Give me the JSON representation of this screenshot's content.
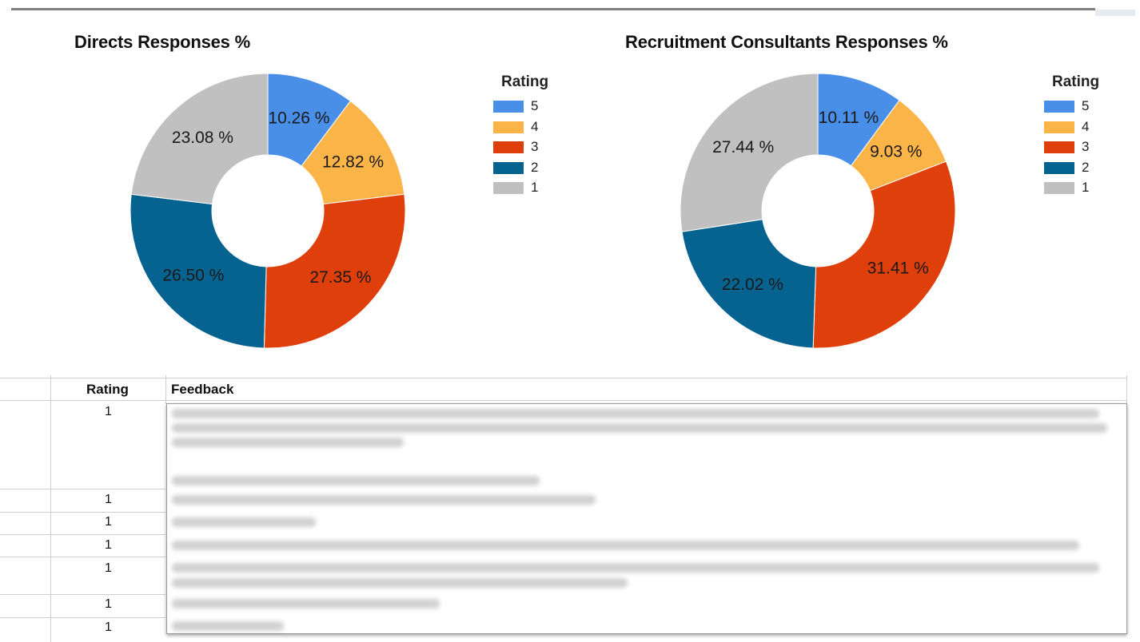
{
  "chart_data": [
    {
      "type": "pie",
      "title": "Directs Responses %",
      "legend_title": "Rating",
      "legend_position": "right",
      "slices": [
        {
          "label": "5",
          "value": 10.26,
          "display": "10.26 %",
          "color": "#4a8fe7"
        },
        {
          "label": "4",
          "value": 12.82,
          "display": "12.82 %",
          "color": "#fbb447"
        },
        {
          "label": "3",
          "value": 27.35,
          "display": "27.35 %",
          "color": "#de3f0b"
        },
        {
          "label": "2",
          "value": 26.5,
          "display": "26.50 %",
          "color": "#06628f"
        },
        {
          "label": "1",
          "value": 23.08,
          "display": "23.08 %",
          "color": "#c0c0c0"
        }
      ]
    },
    {
      "type": "pie",
      "title": "Recruitment Consultants Responses %",
      "legend_title": "Rating",
      "legend_position": "right",
      "slices": [
        {
          "label": "5",
          "value": 10.11,
          "display": "10.11 %",
          "color": "#4a8fe7"
        },
        {
          "label": "4",
          "value": 9.03,
          "display": "9.03 %",
          "color": "#fbb447"
        },
        {
          "label": "3",
          "value": 31.41,
          "display": "31.41 %",
          "color": "#de3f0b"
        },
        {
          "label": "2",
          "value": 22.02,
          "display": "22.02 %",
          "color": "#06628f"
        },
        {
          "label": "1",
          "value": 27.44,
          "display": "27.44 %",
          "color": "#c0c0c0"
        }
      ]
    }
  ],
  "table": {
    "headers": {
      "rating": "Rating",
      "feedback": "Feedback"
    },
    "rows": [
      {
        "rating": "1"
      },
      {
        "rating": "1"
      },
      {
        "rating": "1"
      },
      {
        "rating": "1"
      },
      {
        "rating": "1"
      },
      {
        "rating": "1"
      },
      {
        "rating": "1"
      }
    ]
  }
}
